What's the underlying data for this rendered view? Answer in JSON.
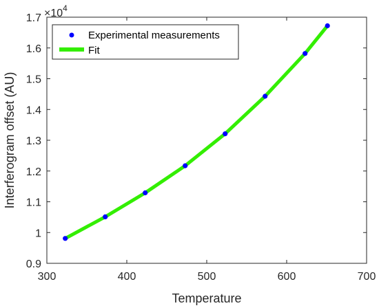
{
  "chart_data": {
    "type": "scatter",
    "xlabel": "Temperature",
    "ylabel": "Interferogram offset (AU)",
    "xlim": [
      300,
      700
    ],
    "ylim": [
      0.9,
      1.7
    ],
    "y_multiplier_base": "10",
    "y_multiplier_exponent": "4",
    "x_ticks": [
      "300",
      "400",
      "500",
      "600",
      "700"
    ],
    "y_ticks": [
      "0.9",
      "1",
      "1.1",
      "1.2",
      "1.3",
      "1.4",
      "1.5",
      "1.6",
      "1.7"
    ],
    "grid": false,
    "legend_position": "top-left",
    "series": [
      {
        "name": "Experimental measurements",
        "kind": "markers",
        "color": "#0000ff",
        "x": [
          323,
          373,
          423,
          473,
          523,
          573,
          623,
          651
        ],
        "y": [
          0.981,
          1.051,
          1.129,
          1.217,
          1.321,
          1.443,
          1.582,
          1.672
        ]
      },
      {
        "name": "Fit",
        "kind": "line",
        "color": "#33ee00",
        "x": [
          323,
          373,
          423,
          473,
          523,
          573,
          623,
          651
        ],
        "y": [
          0.981,
          1.051,
          1.129,
          1.217,
          1.321,
          1.443,
          1.582,
          1.672
        ]
      }
    ]
  }
}
